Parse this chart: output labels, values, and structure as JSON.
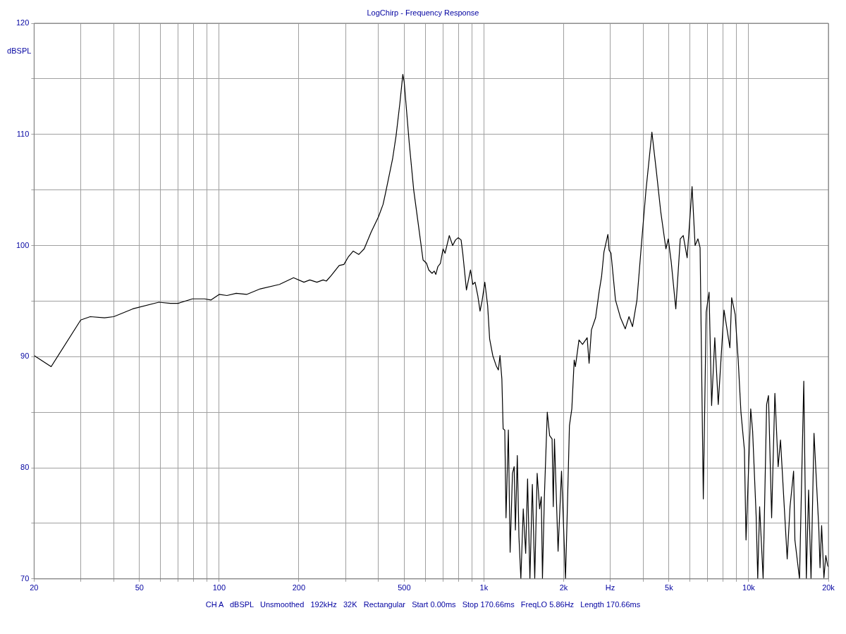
{
  "chart_data": {
    "type": "line",
    "title": "LogChirp - Frequency Response",
    "ylabel": "dBSPL",
    "annotations": [
      "CH A   dBSPL   Unsmoothed   192kHz   32K   Rectangular   Start 0.00ms   Stop 170.66ms   FreqLO 5.86Hz   Length 170.66ms"
    ],
    "log": "x",
    "grid": true,
    "marker": "none",
    "line_style": "solid",
    "xlim": [
      20,
      20000
    ],
    "xticks": [
      20,
      {
        "value": 30,
        "label": null
      },
      {
        "value": 40,
        "label": null
      },
      50,
      {
        "value": 60,
        "label": null
      },
      {
        "value": 70,
        "label": null
      },
      {
        "value": 80,
        "label": null
      },
      {
        "value": 90,
        "label": null
      },
      100,
      200,
      {
        "value": 300,
        "label": null
      },
      {
        "value": 400,
        "label": null
      },
      500,
      {
        "value": 600,
        "label": null
      },
      {
        "value": 700,
        "label": null
      },
      {
        "value": 800,
        "label": null
      },
      {
        "value": 900,
        "label": null
      },
      {
        "value": 1000,
        "label": "1k"
      },
      {
        "value": 2000,
        "label": "2k"
      },
      {
        "value": 3000,
        "label": "Hz"
      },
      {
        "value": 4000,
        "label": null
      },
      {
        "value": 5000,
        "label": "5k"
      },
      {
        "value": 6000,
        "label": null
      },
      {
        "value": 7000,
        "label": null
      },
      {
        "value": 8000,
        "label": null
      },
      {
        "value": 9000,
        "label": null
      },
      {
        "value": 10000,
        "label": "10k"
      },
      {
        "value": 20000,
        "label": "20k"
      }
    ],
    "ylim": [
      70,
      120
    ],
    "yticks": [
      70,
      {
        "value": 75,
        "label": null
      },
      80,
      {
        "value": 85,
        "label": null
      },
      90,
      {
        "value": 95,
        "label": null
      },
      100,
      {
        "value": 105,
        "label": null
      },
      110,
      {
        "value": 115,
        "label": null
      },
      120
    ],
    "series": [
      {
        "color": "#000000",
        "x": [
          20,
          23.2,
          30,
          32.6,
          36.9,
          40,
          47.2,
          59.2,
          65.4,
          70,
          79.3,
          88,
          93.2,
          100,
          107,
          116,
          127,
          143,
          169,
          191,
          209,
          220,
          234,
          247,
          254,
          265,
          284,
          296,
          308,
          321,
          337,
          353,
          375,
          400,
          416,
          424,
          452,
          466,
          482,
          494,
          500,
          522,
          543,
          566,
          589,
          607,
          619,
          637,
          649,
          658,
          670,
          685,
          701,
          713,
          740,
          762,
          781,
          800,
          820,
          832,
          859,
          890,
          908,
          926,
          948,
          967,
          984,
          1008,
          1033,
          1051,
          1080,
          1112,
          1134,
          1150,
          1169,
          1182,
          1199,
          1212,
          1237,
          1256,
          1282,
          1301,
          1315,
          1337,
          1356,
          1379,
          1408,
          1438,
          1462,
          1492,
          1524,
          1556,
          1589,
          1623,
          1647,
          1664,
          1692,
          1735,
          1771,
          1809,
          1828,
          1847,
          1906,
          1964,
          2033,
          2062,
          2104,
          2148,
          2193,
          2216,
          2286,
          2358,
          2455,
          2496,
          2547,
          2641,
          2726,
          2782,
          2840,
          2940,
          2970,
          3020,
          3140,
          3280,
          3418,
          3532,
          3642,
          3785,
          3935,
          4091,
          4310,
          4480,
          4657,
          4869,
          4970,
          5100,
          5306,
          5516,
          5660,
          5856,
          6113,
          6275,
          6432,
          6554,
          6740,
          6911,
          7087,
          7245,
          7448,
          7675,
          8070,
          8493,
          8625,
          8893,
          9129,
          9350,
          9637,
          9772,
          10180,
          10350,
          10670,
          10820,
          11000,
          11340,
          11690,
          11880,
          12210,
          12560,
          12920,
          13190,
          13980,
          14330,
          14780,
          14950,
          15560,
          16150,
          16510,
          16840,
          17200,
          17650,
          18400,
          18600,
          18860,
          19240,
          19560,
          19870,
          20000
        ],
        "values": [
          90.1,
          89.1,
          93.3,
          93.6,
          93.5,
          93.6,
          94.3,
          94.9,
          94.8,
          94.8,
          95.2,
          95.2,
          95.1,
          95.6,
          95.5,
          95.7,
          95.6,
          96.1,
          96.5,
          97.1,
          96.7,
          96.9,
          96.7,
          96.9,
          96.8,
          97.3,
          98.2,
          98.3,
          99.0,
          99.5,
          99.2,
          99.7,
          101.2,
          102.6,
          103.7,
          104.6,
          107.8,
          109.9,
          112.9,
          115.4,
          114.7,
          109.3,
          105.0,
          101.8,
          98.7,
          98.4,
          97.8,
          97.5,
          97.7,
          97.4,
          98.1,
          98.4,
          99.7,
          99.3,
          100.9,
          100.0,
          100.5,
          100.7,
          100.5,
          99.3,
          96.0,
          97.8,
          96.5,
          96.7,
          95.5,
          94.1,
          95.0,
          96.7,
          94.6,
          91.6,
          90.1,
          89.2,
          88.8,
          90.1,
          88.0,
          83.5,
          83.4,
          75.5,
          83.4,
          72.4,
          79.5,
          80.1,
          74.4,
          81.1,
          73.8,
          70,
          76.3,
          72.3,
          79.0,
          70,
          78.5,
          70,
          79.5,
          76.3,
          77.4,
          70,
          77.4,
          85.0,
          82.9,
          82.6,
          76.5,
          82.6,
          72.5,
          79.7,
          70,
          75.5,
          83.8,
          85.3,
          89.7,
          89.1,
          91.5,
          91.1,
          91.7,
          89.4,
          92.4,
          93.5,
          95.9,
          97.2,
          99.4,
          101.0,
          99.6,
          99.3,
          95.1,
          93.5,
          92.5,
          93.6,
          92.7,
          95.1,
          100.1,
          104.9,
          110.2,
          106.7,
          103.0,
          99.7,
          100.6,
          98.5,
          94.3,
          100.6,
          100.9,
          98.9,
          105.3,
          100.0,
          100.6,
          99.8,
          77.2,
          94.0,
          95.8,
          85.6,
          91.7,
          85.7,
          94.2,
          90.8,
          95.3,
          93.8,
          89.7,
          85.0,
          81.6,
          73.5,
          85.3,
          83.3,
          75.7,
          70,
          76.5,
          70,
          85.7,
          86.5,
          75.5,
          86.7,
          80.1,
          82.5,
          71.8,
          76.5,
          79.7,
          73.5,
          70,
          87.8,
          70,
          78.0,
          70,
          83.1,
          74.6,
          71.0,
          74.8,
          70.1,
          72.1,
          71.2,
          71.1
        ]
      }
    ]
  }
}
